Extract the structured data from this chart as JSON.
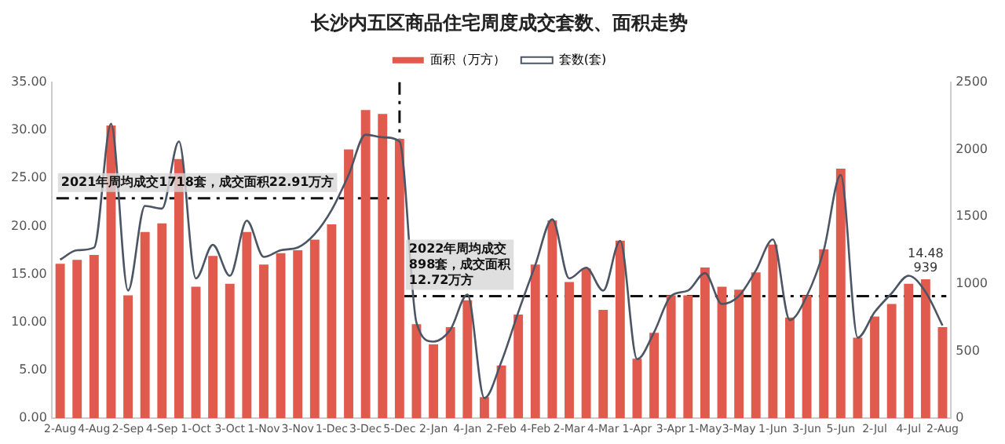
{
  "chart_data": {
    "type": "bar",
    "title": "长沙内五区商品住宅周度成交套数、面积走势",
    "categories": [
      "2-Aug",
      null,
      "4-Aug",
      null,
      "2-Sep",
      null,
      "4-Sep",
      null,
      "1-Oct",
      null,
      "3-Oct",
      null,
      "1-Nov",
      null,
      "3-Nov",
      null,
      "1-Dec",
      null,
      "3-Dec",
      null,
      "5-Dec",
      null,
      "2-Jan",
      null,
      "4-Jan",
      null,
      "2-Feb",
      null,
      "4-Feb",
      null,
      "2-Mar",
      null,
      "4-Mar",
      null,
      "1-Apr",
      null,
      "3-Apr",
      null,
      "1-May",
      null,
      "3-May",
      null,
      "1-Jun",
      null,
      "3-Jun",
      null,
      "5-Jun",
      null,
      "2-Jul",
      null,
      "4-Jul",
      null,
      "2-Aug"
    ],
    "series": [
      {
        "name": "面积（万方）",
        "color": "#e05a4e",
        "values": [
          16.1,
          16.5,
          17.0,
          30.5,
          12.8,
          19.4,
          20.3,
          27.0,
          13.7,
          16.9,
          14.0,
          19.4,
          16.0,
          17.2,
          17.5,
          18.6,
          20.2,
          28.0,
          32.1,
          31.7,
          29.1,
          9.8,
          7.7,
          9.5,
          12.3,
          2.2,
          5.5,
          10.8,
          16.0,
          20.6,
          14.2,
          15.6,
          11.3,
          18.5,
          6.2,
          8.9,
          12.8,
          12.8,
          15.7,
          13.7,
          13.4,
          15.2,
          18.1,
          10.5,
          12.8,
          17.6,
          26.0,
          8.4,
          10.6,
          11.9,
          14.0,
          14.48,
          9.5
        ],
        "value_labels": [
          null,
          null,
          null,
          null,
          null,
          null,
          null,
          null,
          null,
          null,
          null,
          null,
          null,
          null,
          null,
          null,
          null,
          null,
          null,
          null,
          null,
          null,
          null,
          null,
          null,
          null,
          null,
          null,
          null,
          null,
          null,
          null,
          null,
          null,
          null,
          null,
          null,
          null,
          null,
          null,
          null,
          null,
          null,
          null,
          null,
          null,
          null,
          null,
          null,
          null,
          null,
          "14.48",
          null
        ]
      },
      {
        "name": "套数(套)",
        "type": "line",
        "axis": "y2",
        "color": "#4b5563",
        "values": [
          1180,
          1250,
          1270,
          2190,
          950,
          1580,
          1560,
          2060,
          1040,
          1290,
          1060,
          1470,
          1200,
          1250,
          1270,
          1370,
          1550,
          1810,
          2110,
          2090,
          2060,
          710,
          570,
          660,
          920,
          150,
          420,
          790,
          1140,
          1480,
          1040,
          1120,
          950,
          1320,
          440,
          640,
          910,
          950,
          1080,
          850,
          910,
          1100,
          1330,
          730,
          910,
          1250,
          1810,
          600,
          790,
          930,
          1060,
          939,
          690
        ],
        "value_labels": [
          null,
          null,
          null,
          null,
          null,
          null,
          null,
          null,
          null,
          null,
          null,
          null,
          null,
          null,
          null,
          null,
          null,
          null,
          null,
          null,
          null,
          null,
          null,
          null,
          null,
          null,
          null,
          null,
          null,
          null,
          null,
          null,
          null,
          null,
          null,
          null,
          null,
          null,
          null,
          null,
          null,
          null,
          null,
          null,
          null,
          null,
          null,
          null,
          null,
          null,
          null,
          "939",
          null
        ]
      }
    ],
    "ylim": [
      0,
      35
    ],
    "yticks": [
      {
        "value": 0,
        "label": "0.00"
      },
      {
        "value": 5,
        "label": "5.00"
      },
      {
        "value": 10,
        "label": "10.00"
      },
      {
        "value": 15,
        "label": "15.00"
      },
      {
        "value": 20,
        "label": "20.00"
      },
      {
        "value": 25,
        "label": "25.00"
      },
      {
        "value": 30,
        "label": "30.00"
      },
      {
        "value": 35,
        "label": "35.00"
      }
    ],
    "y2lim": [
      0,
      2500
    ],
    "y2ticks": [
      0,
      500,
      1000,
      1500,
      2000,
      2500
    ],
    "ref_lines": [
      {
        "axis": "x",
        "value": "5-Dec",
        "line_style": "dashdot",
        "color": "#111111"
      },
      {
        "axis": "y",
        "value": 22.91,
        "label": "2021年周均成交1718套，成交面积22.91万方",
        "line_style": "dashdot",
        "color": "#111111"
      },
      {
        "axis": "y",
        "value": 12.72,
        "label": "2022年周均成交898套，成交面积12.72万方",
        "line_style": "dashdot",
        "color": "#111111"
      }
    ],
    "grid": false,
    "legend": "top",
    "marker": "none"
  }
}
